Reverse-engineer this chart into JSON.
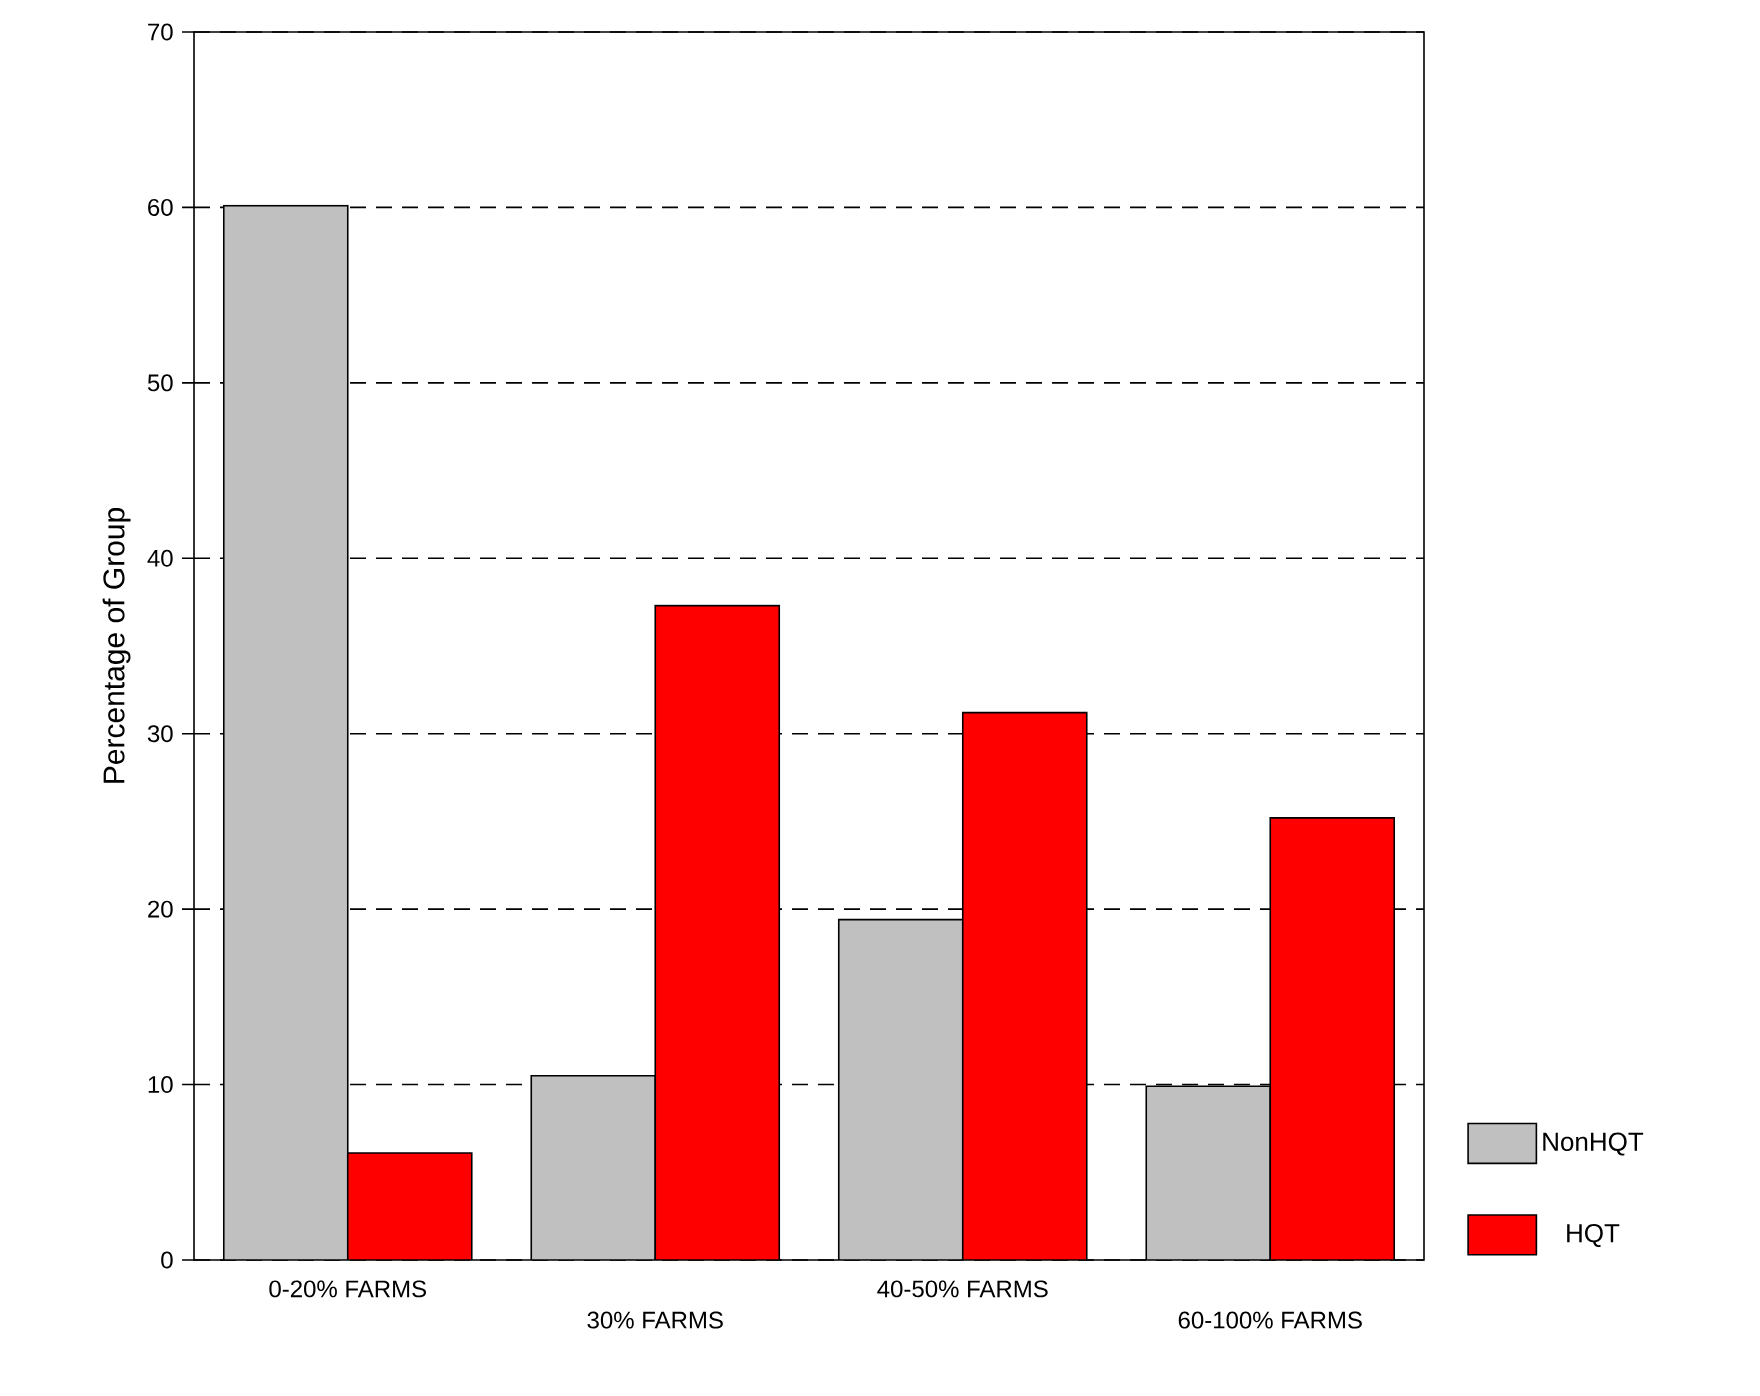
{
  "chart_data": {
    "type": "bar",
    "ylabel": "Percentage of Group",
    "categories": [
      "0-20% FARMS",
      "30% FARMS",
      "40-50% FARMS",
      "60-100% FARMS"
    ],
    "series": [
      {
        "name": "NonHQT",
        "color": "#c0c0c0",
        "values": [
          60.1,
          10.5,
          19.4,
          9.9
        ]
      },
      {
        "name": "HQT",
        "color": "#ff0000",
        "values": [
          6.1,
          37.3,
          31.2,
          25.2
        ]
      }
    ],
    "ylim": [
      0,
      70
    ],
    "yticks": [
      0,
      10,
      20,
      30,
      40,
      50,
      60,
      70
    ],
    "grid": "y",
    "legend": "bottom right"
  }
}
